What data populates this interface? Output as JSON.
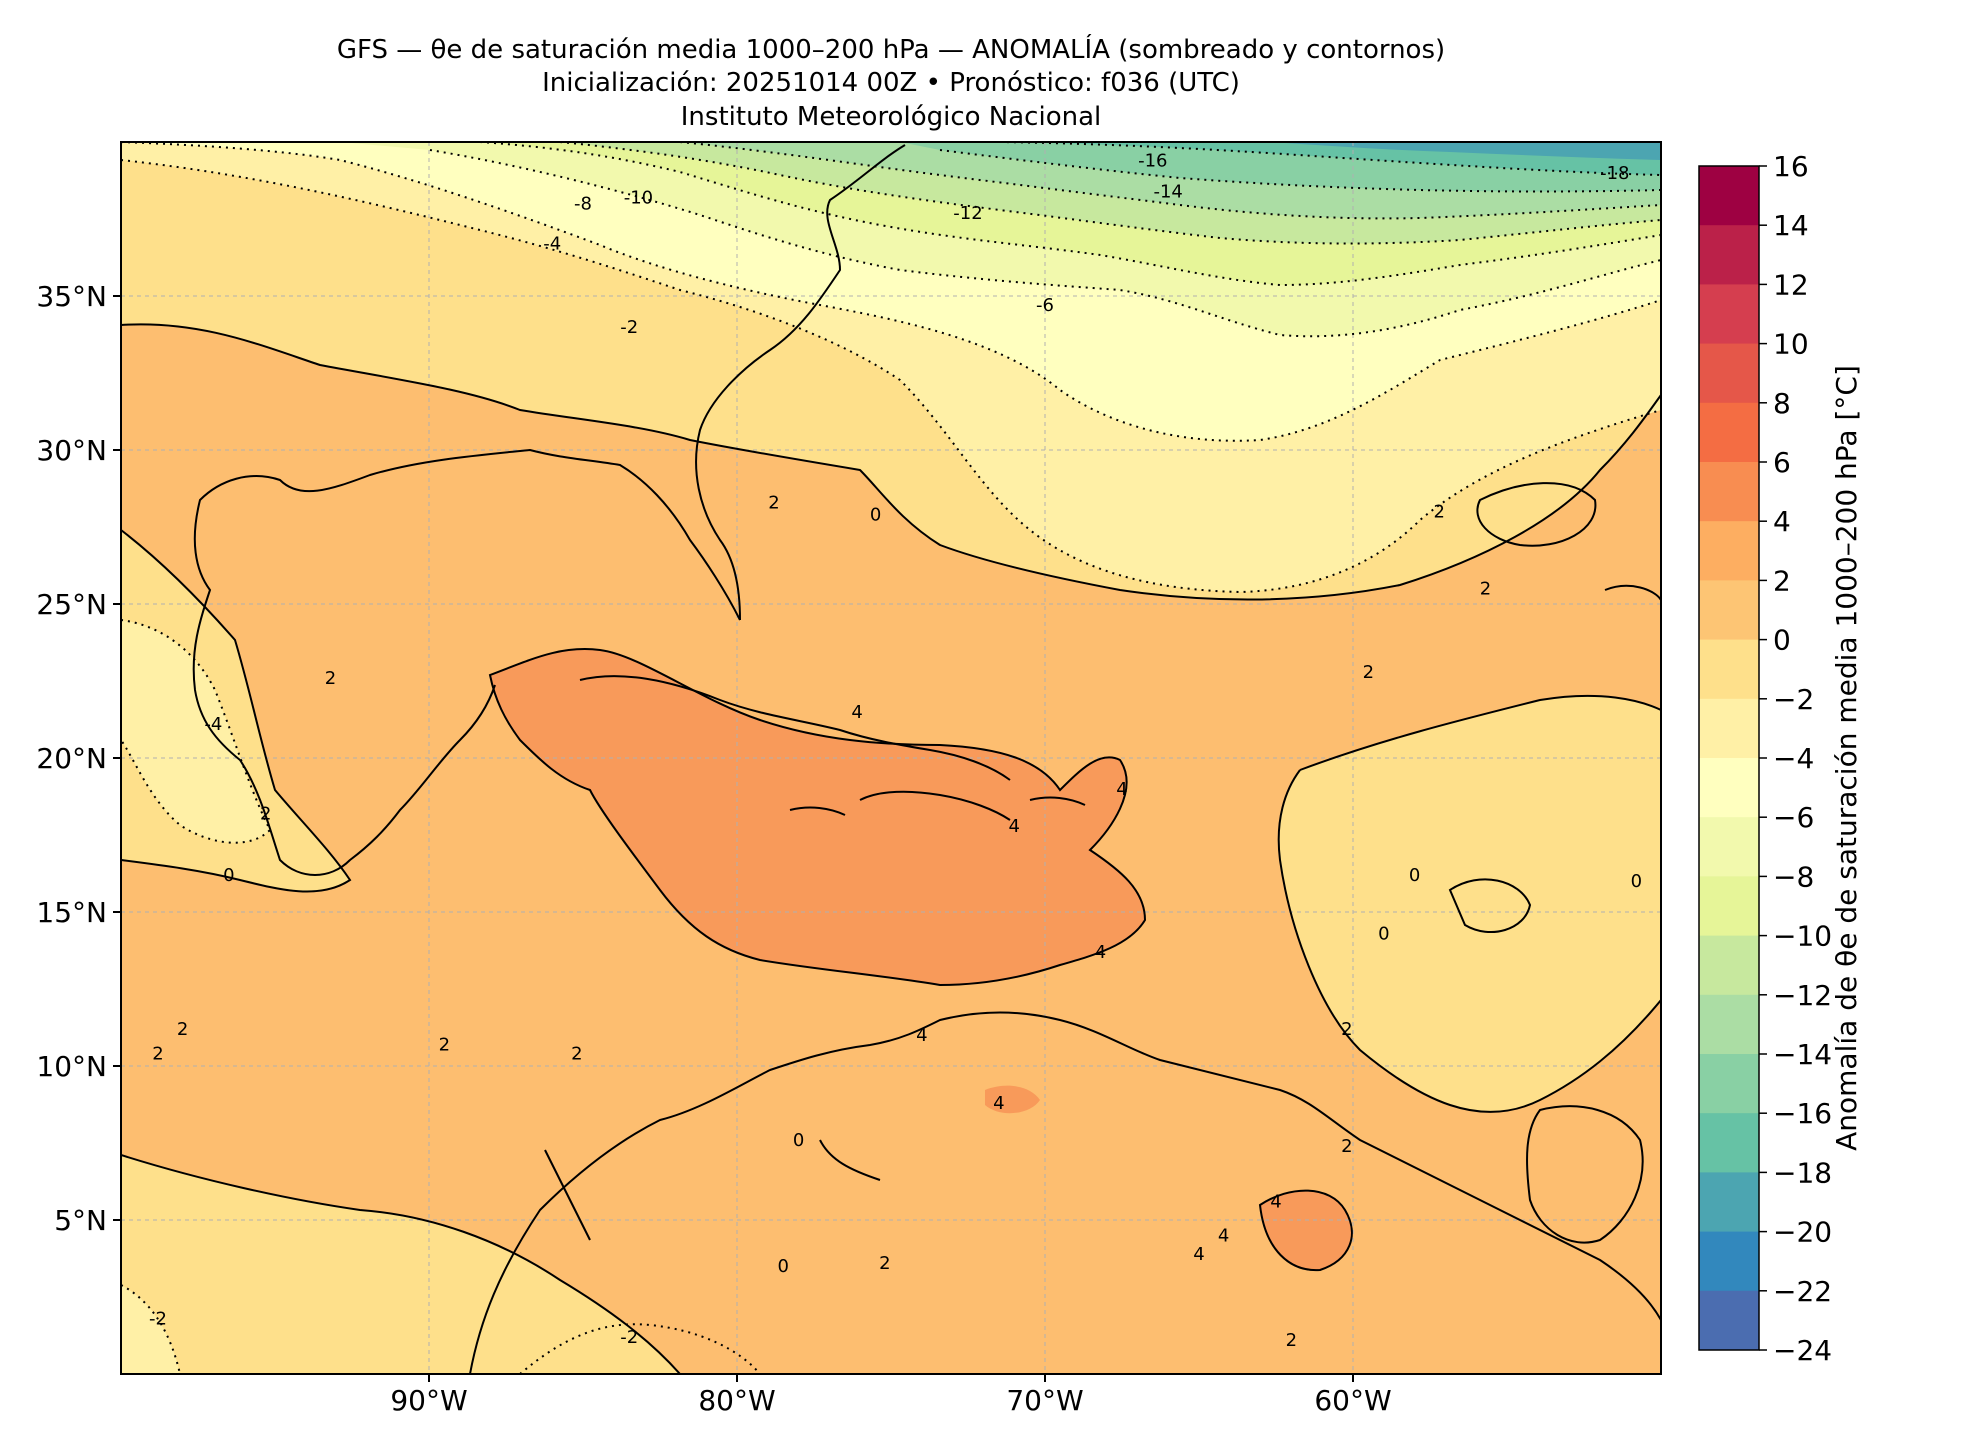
{
  "title": {
    "line1": "GFS — θe de saturación media 1000–200 hPa — ANOMALÍA (sombreado y contornos)",
    "line2": "Inicialización: 20251014 00Z   •   Pronóstico: f036 (UTC)",
    "line3": "Instituto Meteorológico Nacional"
  },
  "map": {
    "lon_range": [
      -100,
      -50
    ],
    "lat_range": [
      0,
      40
    ],
    "lon_ticks": [
      "90°W",
      "80°W",
      "70°W",
      "60°W"
    ],
    "lat_ticks": [
      "35°N",
      "30°N",
      "25°N",
      "20°N",
      "15°N",
      "10°N",
      "5°N"
    ],
    "grid": true,
    "contour_labels": [
      {
        "text": "-18",
        "lon": -51.5,
        "lat": 39.0
      },
      {
        "text": "-16",
        "lon": -66.5,
        "lat": 39.4
      },
      {
        "text": "-14",
        "lon": -66.0,
        "lat": 38.4
      },
      {
        "text": "-12",
        "lon": -72.5,
        "lat": 37.7
      },
      {
        "text": "-10",
        "lon": -83.2,
        "lat": 38.2
      },
      {
        "text": "-8",
        "lon": -85.0,
        "lat": 38.0
      },
      {
        "text": "-6",
        "lon": -70.0,
        "lat": 34.7
      },
      {
        "text": "-4",
        "lon": -86.0,
        "lat": 36.7
      },
      {
        "text": "-2",
        "lon": -83.5,
        "lat": 34.0
      },
      {
        "text": "0",
        "lon": -75.5,
        "lat": 27.9
      },
      {
        "text": "2",
        "lon": -78.8,
        "lat": 28.3
      },
      {
        "text": "2",
        "lon": -57.2,
        "lat": 28.0
      },
      {
        "text": "2",
        "lon": -55.7,
        "lat": 25.5
      },
      {
        "text": "2",
        "lon": -59.5,
        "lat": 22.8
      },
      {
        "text": "2",
        "lon": -93.2,
        "lat": 22.6
      },
      {
        "text": "-4",
        "lon": -97.0,
        "lat": 21.1
      },
      {
        "text": "2",
        "lon": -95.3,
        "lat": 18.2
      },
      {
        "text": "0",
        "lon": -96.5,
        "lat": 16.2
      },
      {
        "text": "4",
        "lon": -76.1,
        "lat": 21.5
      },
      {
        "text": "4",
        "lon": -67.5,
        "lat": 19.0
      },
      {
        "text": "4",
        "lon": -71.0,
        "lat": 17.8
      },
      {
        "text": "4",
        "lon": -68.2,
        "lat": 13.7
      },
      {
        "text": "4",
        "lon": -74.0,
        "lat": 11.0
      },
      {
        "text": "0",
        "lon": -58.0,
        "lat": 16.2
      },
      {
        "text": "0",
        "lon": -59.0,
        "lat": 14.3
      },
      {
        "text": "0",
        "lon": -50.8,
        "lat": 16.0
      },
      {
        "text": "2",
        "lon": -98.0,
        "lat": 11.2
      },
      {
        "text": "2",
        "lon": -98.8,
        "lat": 10.4
      },
      {
        "text": "2",
        "lon": -89.5,
        "lat": 10.7
      },
      {
        "text": "2",
        "lon": -85.2,
        "lat": 10.4
      },
      {
        "text": "2",
        "lon": -60.2,
        "lat": 11.2
      },
      {
        "text": "4",
        "lon": -71.5,
        "lat": 8.8
      },
      {
        "text": "2",
        "lon": -60.2,
        "lat": 7.4
      },
      {
        "text": "0",
        "lon": -78.0,
        "lat": 7.6
      },
      {
        "text": "2",
        "lon": -75.2,
        "lat": 3.6
      },
      {
        "text": "4",
        "lon": -64.2,
        "lat": 4.5
      },
      {
        "text": "4",
        "lon": -65.0,
        "lat": 3.9
      },
      {
        "text": "4",
        "lon": -62.5,
        "lat": 5.6
      },
      {
        "text": "0",
        "lon": -78.5,
        "lat": 3.5
      },
      {
        "text": "2",
        "lon": -62.0,
        "lat": 1.1
      },
      {
        "text": "-2",
        "lon": -98.8,
        "lat": 1.8
      },
      {
        "text": "-2",
        "lon": -83.5,
        "lat": 1.2
      }
    ]
  },
  "colorbar": {
    "label": "Anomalía de θe de saturación media 1000–200 hPa [°C]",
    "ticks": [
      "16",
      "14",
      "12",
      "10",
      "8",
      "6",
      "4",
      "2",
      "0",
      "−2",
      "−4",
      "−6",
      "−8",
      "−10",
      "−12",
      "−14",
      "−16",
      "−18",
      "−20",
      "−22",
      "−24"
    ],
    "colors": [
      "#9e0142",
      "#bb2149",
      "#d53e4f",
      "#e55749",
      "#f46d43",
      "#f88d51",
      "#fdae61",
      "#fdc574",
      "#fee08b",
      "#fff0a6",
      "#ffffbf",
      "#f2f9ad",
      "#e6f598",
      "#c7e89e",
      "#abdda4",
      "#89d0a4",
      "#66c2a5",
      "#4ca5b1",
      "#3288bd",
      "#4b6db0",
      "#5e4fa2"
    ]
  }
}
